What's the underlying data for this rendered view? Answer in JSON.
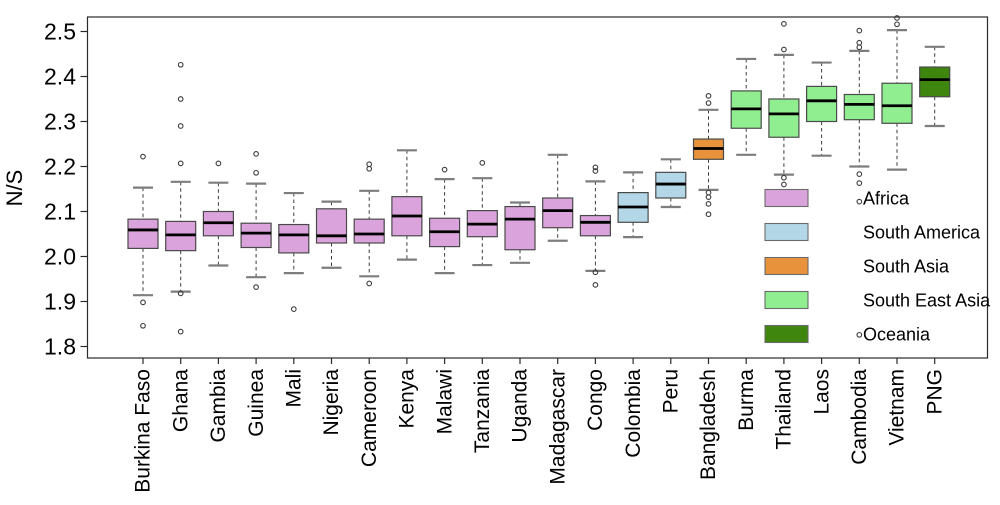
{
  "chart_data": {
    "type": "boxplot",
    "title": "",
    "ylabel": "N/S",
    "ylim": [
      1.774,
      2.532
    ],
    "grid": false,
    "y_axis": {
      "ticks": [
        2.5,
        2.4,
        2.3,
        2.2,
        2.1,
        2.0,
        1.9,
        1.8
      ]
    },
    "legend": {
      "position": "inside-right",
      "entries": [
        {
          "label": "Africa",
          "color": "#DAA3DC"
        },
        {
          "label": "South America",
          "color": "#B3D7E6"
        },
        {
          "label": "South Asia",
          "color": "#E8923B"
        },
        {
          "label": "South East Asia",
          "color": "#90EE90"
        },
        {
          "label": "Oceania",
          "color": "#3E860E"
        }
      ]
    },
    "boxes": [
      {
        "country": "Burkina Faso",
        "region": "Africa",
        "whisker_low": 1.914,
        "q1": 2.018,
        "median": 2.059,
        "q3": 2.083,
        "whisker_high": 2.153,
        "outliers": [
          2.222,
          1.898,
          1.846
        ]
      },
      {
        "country": "Ghana",
        "region": "Africa",
        "whisker_low": 1.922,
        "q1": 2.013,
        "median": 2.048,
        "q3": 2.078,
        "whisker_high": 2.166,
        "outliers": [
          2.426,
          2.35,
          2.29,
          2.207,
          1.918,
          1.833
        ]
      },
      {
        "country": "Gambia",
        "region": "Africa",
        "whisker_low": 1.98,
        "q1": 2.046,
        "median": 2.075,
        "q3": 2.1,
        "whisker_high": 2.164,
        "outliers": [
          2.207
        ]
      },
      {
        "country": "Guinea",
        "region": "Africa",
        "whisker_low": 1.954,
        "q1": 2.02,
        "median": 2.052,
        "q3": 2.074,
        "whisker_high": 2.162,
        "outliers": [
          2.228,
          2.186,
          1.932
        ]
      },
      {
        "country": "Mali",
        "region": "Africa",
        "whisker_low": 1.963,
        "q1": 2.008,
        "median": 2.048,
        "q3": 2.071,
        "whisker_high": 2.141,
        "outliers": [
          1.883
        ]
      },
      {
        "country": "Nigeria",
        "region": "Africa",
        "whisker_low": 1.975,
        "q1": 2.03,
        "median": 2.046,
        "q3": 2.106,
        "whisker_high": 2.122,
        "outliers": []
      },
      {
        "country": "Cameroon",
        "region": "Africa",
        "whisker_low": 1.956,
        "q1": 2.03,
        "median": 2.05,
        "q3": 2.083,
        "whisker_high": 2.146,
        "outliers": [
          2.205,
          2.195,
          1.94
        ]
      },
      {
        "country": "Kenya",
        "region": "Africa",
        "whisker_low": 1.993,
        "q1": 2.046,
        "median": 2.09,
        "q3": 2.133,
        "whisker_high": 2.236,
        "outliers": []
      },
      {
        "country": "Malawi",
        "region": "Africa",
        "whisker_low": 1.963,
        "q1": 2.022,
        "median": 2.055,
        "q3": 2.085,
        "whisker_high": 2.172,
        "outliers": [
          2.193
        ]
      },
      {
        "country": "Tanzania",
        "region": "Africa",
        "whisker_low": 1.981,
        "q1": 2.044,
        "median": 2.072,
        "q3": 2.102,
        "whisker_high": 2.174,
        "outliers": [
          2.208
        ]
      },
      {
        "country": "Uganda",
        "region": "Africa",
        "whisker_low": 1.986,
        "q1": 2.015,
        "median": 2.083,
        "q3": 2.111,
        "whisker_high": 2.12,
        "outliers": []
      },
      {
        "country": "Madagascar",
        "region": "Africa",
        "whisker_low": 2.035,
        "q1": 2.064,
        "median": 2.102,
        "q3": 2.13,
        "whisker_high": 2.226,
        "outliers": []
      },
      {
        "country": "Congo",
        "region": "Africa",
        "whisker_low": 1.968,
        "q1": 2.046,
        "median": 2.076,
        "q3": 2.091,
        "whisker_high": 2.167,
        "outliers": [
          2.198,
          2.19,
          1.965,
          1.937
        ]
      },
      {
        "country": "Colombia",
        "region": "South America",
        "whisker_low": 2.043,
        "q1": 2.076,
        "median": 2.11,
        "q3": 2.142,
        "whisker_high": 2.187,
        "outliers": []
      },
      {
        "country": "Peru",
        "region": "South America",
        "whisker_low": 2.11,
        "q1": 2.13,
        "median": 2.161,
        "q3": 2.187,
        "whisker_high": 2.216,
        "outliers": []
      },
      {
        "country": "Bangladesh",
        "region": "South Asia",
        "whisker_low": 2.148,
        "q1": 2.216,
        "median": 2.24,
        "q3": 2.261,
        "whisker_high": 2.326,
        "outliers": [
          2.357,
          2.341,
          2.142,
          2.132,
          2.117,
          2.094
        ]
      },
      {
        "country": "Burma",
        "region": "South East Asia",
        "whisker_low": 2.226,
        "q1": 2.285,
        "median": 2.328,
        "q3": 2.368,
        "whisker_high": 2.439,
        "outliers": []
      },
      {
        "country": "Thailand",
        "region": "South East Asia",
        "whisker_low": 2.182,
        "q1": 2.265,
        "median": 2.317,
        "q3": 2.35,
        "whisker_high": 2.448,
        "outliers": [
          2.517,
          2.46,
          2.175,
          2.16
        ]
      },
      {
        "country": "Laos",
        "region": "South East Asia",
        "whisker_low": 2.224,
        "q1": 2.3,
        "median": 2.346,
        "q3": 2.378,
        "whisker_high": 2.431,
        "outliers": []
      },
      {
        "country": "Cambodia",
        "region": "South East Asia",
        "whisker_low": 2.2,
        "q1": 2.304,
        "median": 2.338,
        "q3": 2.36,
        "whisker_high": 2.457,
        "outliers": [
          2.502,
          2.475,
          2.465,
          2.183,
          2.163,
          2.122,
          1.826
        ]
      },
      {
        "country": "Vietnam",
        "region": "South East Asia",
        "whisker_low": 2.193,
        "q1": 2.296,
        "median": 2.335,
        "q3": 2.385,
        "whisker_high": 2.503,
        "outliers": [
          2.53,
          2.516
        ]
      },
      {
        "country": "PNG",
        "region": "Oceania",
        "whisker_low": 2.29,
        "q1": 2.355,
        "median": 2.393,
        "q3": 2.421,
        "whisker_high": 2.466,
        "outliers": []
      }
    ]
  }
}
